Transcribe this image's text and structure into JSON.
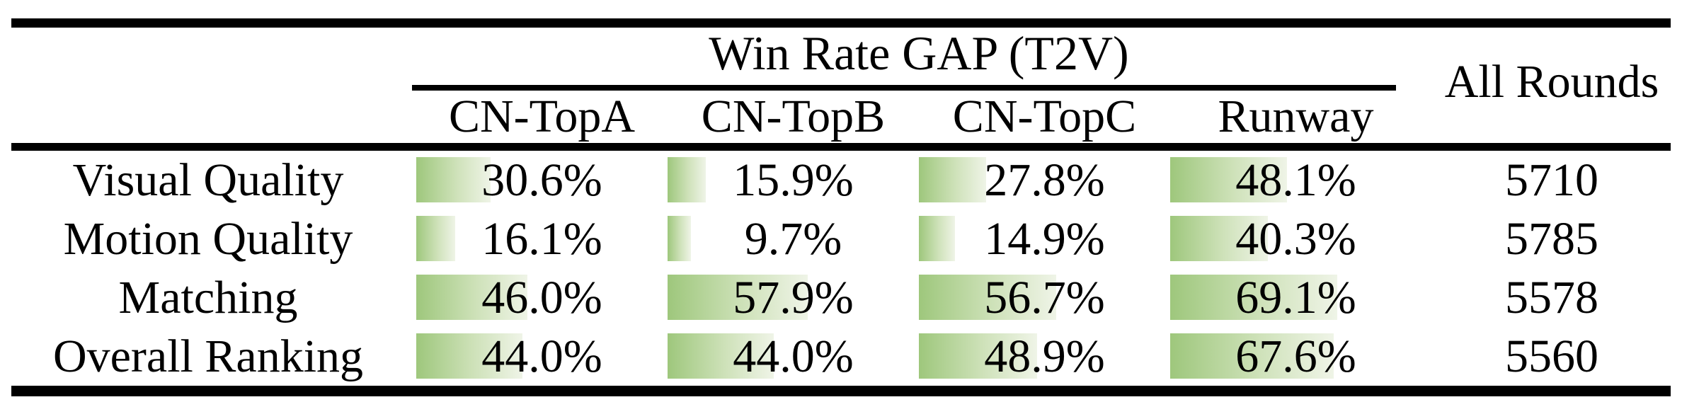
{
  "table": {
    "title": "Win Rate GAP (T2V)",
    "all_rounds_header": "All Rounds",
    "columns": [
      "CN-TopA",
      "CN-TopB",
      "CN-TopC",
      "Runway"
    ],
    "rows": [
      {
        "label": "Visual Quality",
        "values": [
          "30.6%",
          "15.9%",
          "27.8%",
          "48.1%"
        ],
        "all_rounds": "5710"
      },
      {
        "label": "Motion Quality",
        "values": [
          "16.1%",
          "9.7%",
          "14.9%",
          "40.3%"
        ],
        "all_rounds": "5785"
      },
      {
        "label": "Matching",
        "values": [
          "46.0%",
          "57.9%",
          "56.7%",
          "69.1%"
        ],
        "all_rounds": "5578"
      },
      {
        "label": "Overall Ranking",
        "values": [
          "44.0%",
          "44.0%",
          "48.9%",
          "67.6%"
        ],
        "all_rounds": "5560"
      }
    ],
    "bar_gradient_start": "#9ec77c",
    "bar_gradient_end": "#eff4e7",
    "rule_color": "#000000",
    "text_color": "#000000"
  }
}
